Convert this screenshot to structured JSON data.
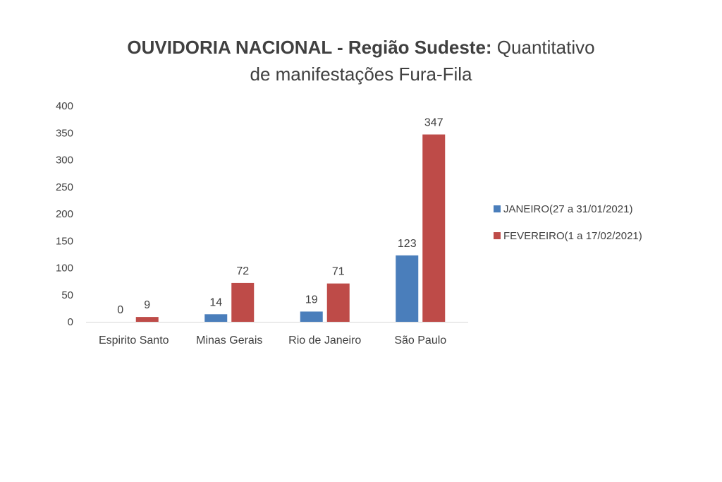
{
  "chart_data": {
    "type": "bar",
    "title_bold": "OUVIDORIA NACIONAL - Região Sudeste:",
    "title_rest": " Quantitativo",
    "title_line2": "de manifestações Fura-Fila",
    "categories": [
      "Espirito Santo",
      "Minas Gerais",
      "Rio de Janeiro",
      "São Paulo"
    ],
    "series": [
      {
        "name": "JANEIRO(27 a 31/01/2021)",
        "color": "#4a7ebb",
        "values": [
          0,
          14,
          19,
          123
        ]
      },
      {
        "name": "FEVEREIRO(1 a 17/02/2021)",
        "color": "#be4b48",
        "values": [
          9,
          72,
          71,
          347
        ]
      }
    ],
    "ylim": [
      0,
      400
    ],
    "yticks": [
      0,
      50,
      100,
      150,
      200,
      250,
      300,
      350,
      400
    ],
    "grid": false,
    "legend_position": "right"
  }
}
